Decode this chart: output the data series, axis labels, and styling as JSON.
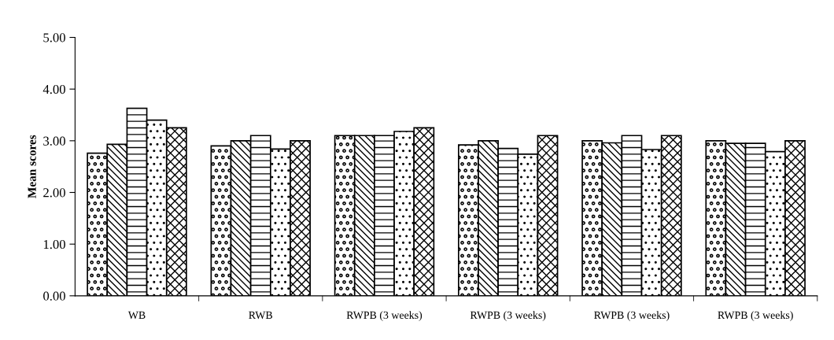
{
  "chart_data": {
    "type": "bar",
    "ylabel": "Mean scores",
    "categories": [
      "WB",
      "RWB",
      "RWPB (3 weeks)",
      "RWPB (3 weeks)",
      "RWPB (3 weeks)",
      "RWPB (3 weeks)"
    ],
    "series": [
      {
        "color": "#000000",
        "values": [
          2.76,
          2.9,
          3.1,
          2.92,
          3.0,
          3.0
        ]
      },
      {
        "color": "#000000",
        "values": [
          2.93,
          3.0,
          3.1,
          3.0,
          2.96,
          2.95
        ]
      },
      {
        "color": "#000000",
        "values": [
          3.63,
          3.1,
          3.1,
          2.85,
          3.1,
          2.95
        ]
      },
      {
        "color": "#000000",
        "values": [
          3.4,
          2.84,
          3.18,
          2.74,
          2.83,
          2.79
        ]
      },
      {
        "color": "#000000",
        "values": [
          3.25,
          3.0,
          3.25,
          3.1,
          3.1,
          3.0
        ]
      }
    ],
    "ylim": [
      0,
      5
    ],
    "yticks": [
      {
        "value": 0,
        "label": "0.00"
      },
      {
        "value": 1,
        "label": "1.00"
      },
      {
        "value": 2,
        "label": "2.00"
      },
      {
        "value": 3,
        "label": "3.00"
      },
      {
        "value": 4,
        "label": "4.00"
      },
      {
        "value": 5,
        "label": "5.00"
      }
    ],
    "grid": false,
    "legend": false
  }
}
